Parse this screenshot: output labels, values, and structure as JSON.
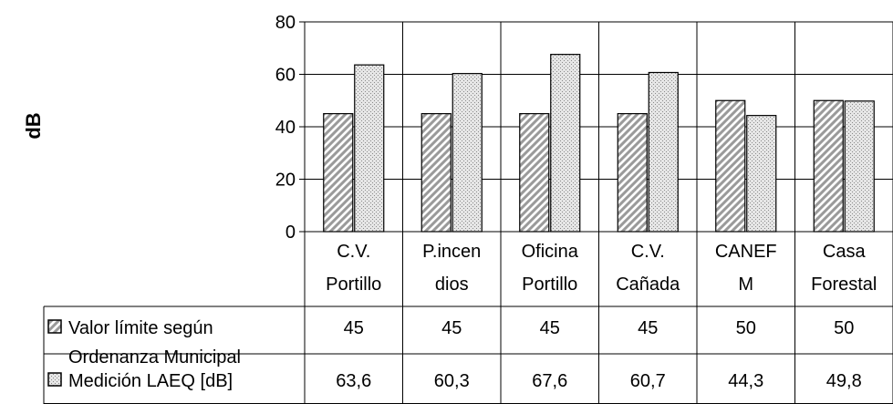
{
  "chart_data": {
    "type": "bar",
    "ylabel": "dB",
    "ylim": [
      0,
      80
    ],
    "yticks": [
      "0",
      "20",
      "40",
      "60",
      "80"
    ],
    "grid": true,
    "categories": [
      [
        "C.V.",
        "Portillo"
      ],
      [
        "P.incen",
        "dios"
      ],
      [
        "Oficina",
        "Portillo"
      ],
      [
        "C.V.",
        "Cañada"
      ],
      [
        "CANEF",
        "M"
      ],
      [
        "Casa",
        "Forestal"
      ]
    ],
    "series": [
      {
        "name": [
          "Valor límite según",
          "Ordenanza Municipal"
        ],
        "pattern": "diagonal-hatch",
        "values": [
          45,
          45,
          45,
          45,
          50,
          50
        ],
        "value_labels": [
          "45",
          "45",
          "45",
          "45",
          "50",
          "50"
        ]
      },
      {
        "name": [
          "Medición LAEQ [dB]"
        ],
        "pattern": "fine-dots",
        "values": [
          63.6,
          60.3,
          67.6,
          60.7,
          44.3,
          49.8
        ],
        "value_labels": [
          "63,6",
          "60,3",
          "67,6",
          "60,7",
          "44,3",
          "49,8"
        ]
      }
    ],
    "legend_placement": "data-table-left"
  }
}
